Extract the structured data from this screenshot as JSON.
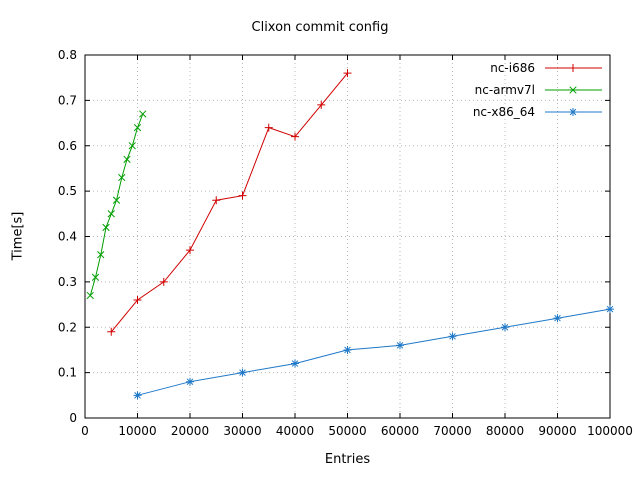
{
  "page": {
    "background": "#ffffff",
    "grid_color": "#b8b8b8",
    "border_color": "#000000"
  },
  "chart_data": {
    "type": "line",
    "title": "Clixon commit config",
    "xlabel": "Entries",
    "ylabel": "Time[s]",
    "xlim": [
      0,
      100000
    ],
    "ylim": [
      0,
      0.8
    ],
    "grid": true,
    "legend_position": "top-right",
    "xticks": [
      0,
      10000,
      20000,
      30000,
      40000,
      50000,
      60000,
      70000,
      80000,
      90000,
      100000
    ],
    "xtick_labels": [
      "0",
      "10000",
      "20000",
      "30000",
      "40000",
      "50000",
      "60000",
      "70000",
      "80000",
      "90000",
      "100000"
    ],
    "yticks": [
      0,
      0.1,
      0.2,
      0.3,
      0.4,
      0.5,
      0.6,
      0.7,
      0.8
    ],
    "ytick_labels": [
      "0",
      "0.1",
      "0.2",
      "0.3",
      "0.4",
      "0.5",
      "0.6",
      "0.7",
      "0.8"
    ],
    "series": [
      {
        "name": "nc-i686",
        "color": "#d00000",
        "marker": "plus",
        "points": [
          [
            5000,
            0.19
          ],
          [
            10000,
            0.26
          ],
          [
            15000,
            0.3
          ],
          [
            20000,
            0.37
          ],
          [
            25000,
            0.48
          ],
          [
            30000,
            0.49
          ],
          [
            35000,
            0.64
          ],
          [
            40000,
            0.62
          ],
          [
            45000,
            0.69
          ],
          [
            50000,
            0.76
          ]
        ]
      },
      {
        "name": "nc-armv7l",
        "color": "#009e00",
        "marker": "cross",
        "points": [
          [
            1000,
            0.27
          ],
          [
            2000,
            0.31
          ],
          [
            3000,
            0.36
          ],
          [
            4000,
            0.42
          ],
          [
            5000,
            0.45
          ],
          [
            6000,
            0.48
          ],
          [
            7000,
            0.53
          ],
          [
            8000,
            0.57
          ],
          [
            9000,
            0.6
          ],
          [
            10000,
            0.64
          ],
          [
            11000,
            0.67
          ]
        ]
      },
      {
        "name": "nc-x86_64",
        "color": "#1e78c8",
        "marker": "star",
        "points": [
          [
            10000,
            0.05
          ],
          [
            20000,
            0.08
          ],
          [
            30000,
            0.1
          ],
          [
            40000,
            0.12
          ],
          [
            50000,
            0.15
          ],
          [
            60000,
            0.16
          ],
          [
            70000,
            0.18
          ],
          [
            80000,
            0.2
          ],
          [
            90000,
            0.22
          ],
          [
            100000,
            0.24
          ]
        ]
      }
    ]
  }
}
